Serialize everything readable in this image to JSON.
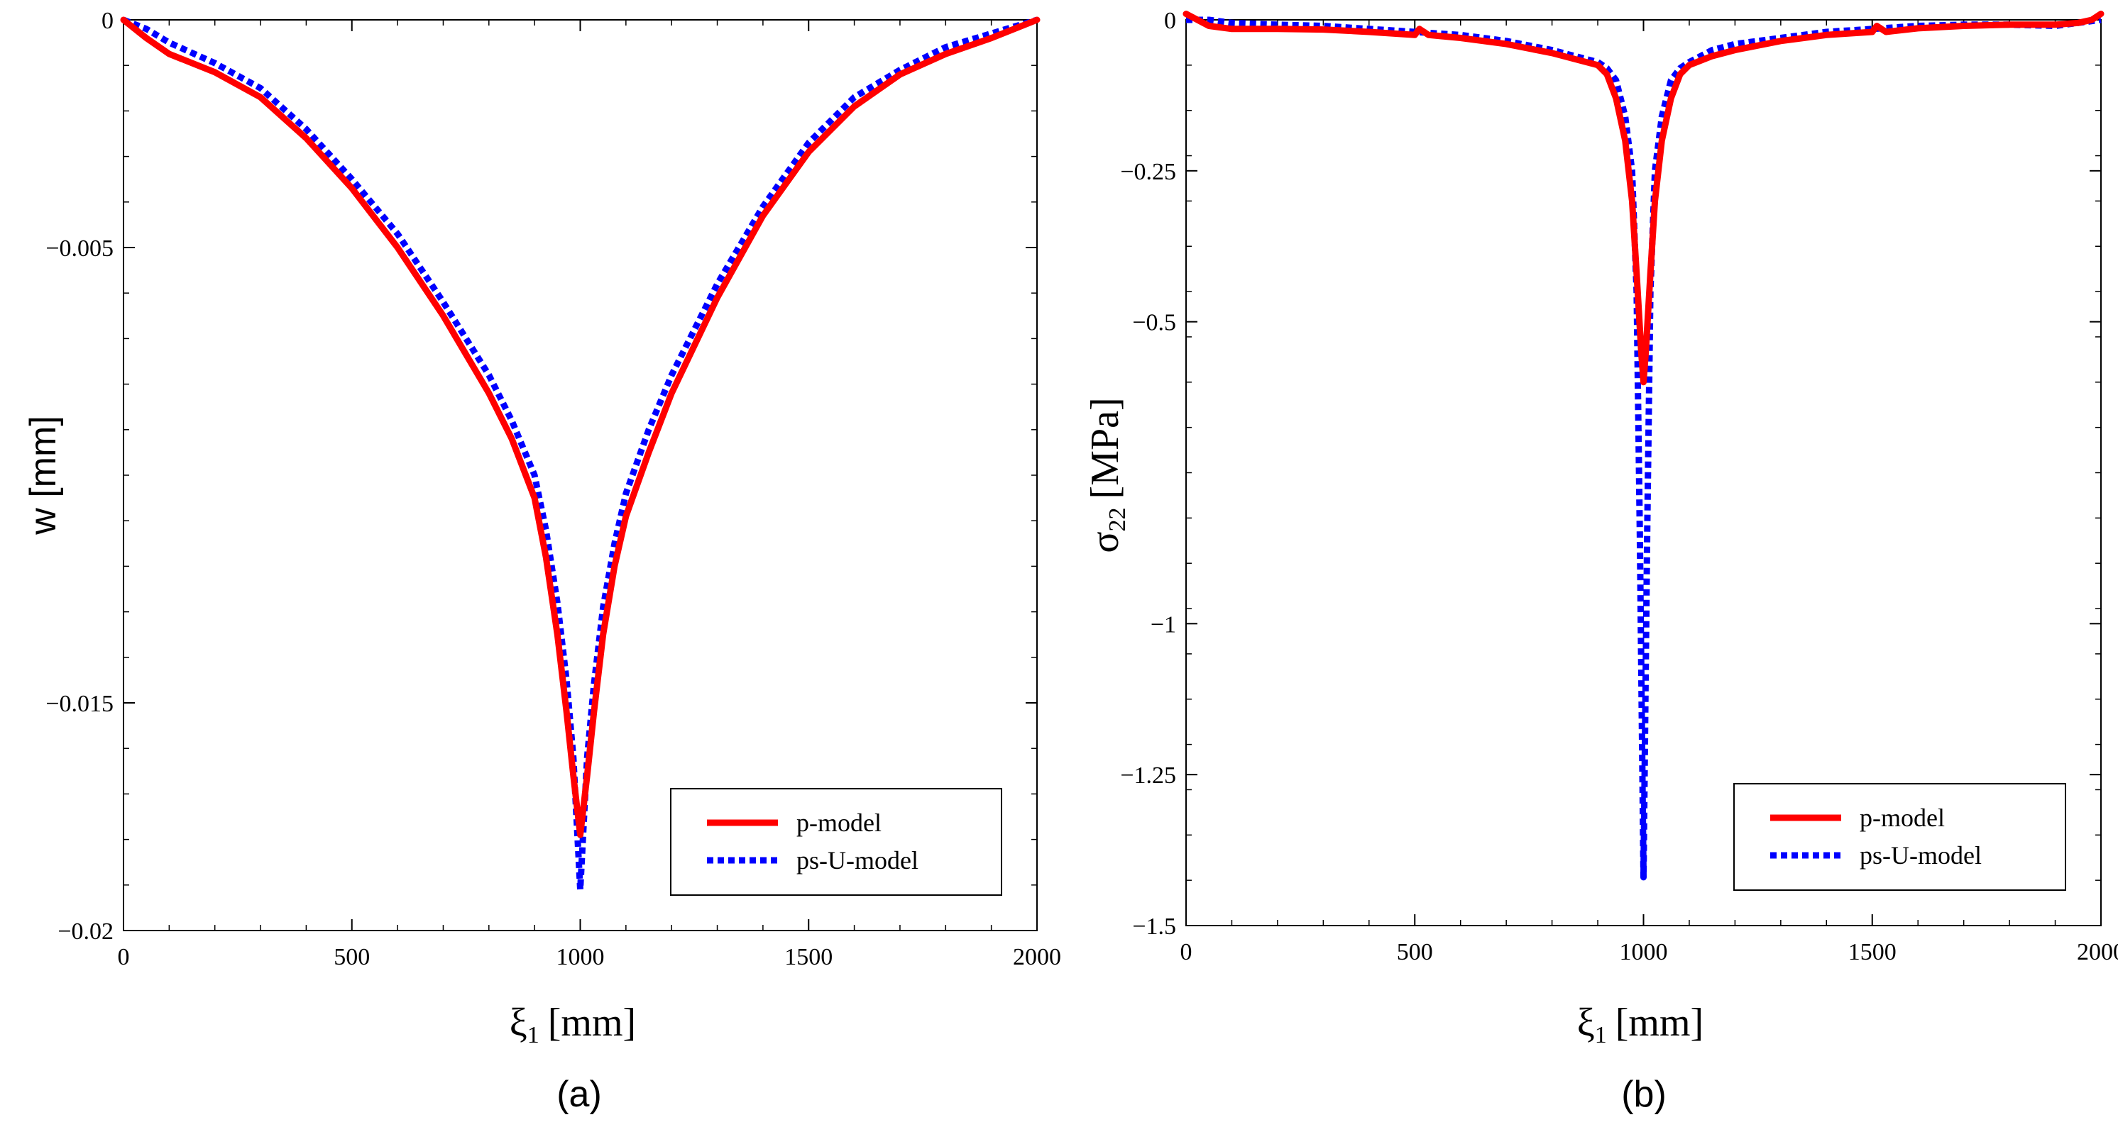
{
  "chart_data": [
    {
      "type": "line",
      "panel_label": "(a)",
      "title": "",
      "xlabel_symbol": "ξ",
      "xlabel_sub": "1",
      "xlabel_unit": "[mm]",
      "ylabel": "w [mm]",
      "xlim": [
        0,
        2000
      ],
      "ylim": [
        -0.02,
        0
      ],
      "xticks": [
        0,
        500,
        1000,
        1500,
        2000
      ],
      "xtick_labels": [
        "0",
        "500",
        "1000",
        "1500",
        "2000"
      ],
      "yticks": [
        0,
        -0.005,
        -0.015,
        -0.02
      ],
      "ytick_labels": [
        "0",
        "−0.005",
        "−0.015",
        "−0.02"
      ],
      "legend_position": "bottom-right",
      "series": [
        {
          "name": "p-model",
          "color": "#ff0000",
          "style": "solid",
          "x": [
            0,
            50,
            100,
            200,
            300,
            400,
            500,
            600,
            700,
            800,
            850,
            900,
            925,
            950,
            970,
            985,
            1000,
            1015,
            1030,
            1050,
            1075,
            1100,
            1150,
            1200,
            1300,
            1400,
            1500,
            1600,
            1700,
            1800,
            1900,
            1950,
            2000
          ],
          "y": [
            0,
            -0.0004,
            -0.00075,
            -0.00115,
            -0.0017,
            -0.0026,
            -0.0037,
            -0.005,
            -0.0065,
            -0.0082,
            -0.0092,
            -0.0105,
            -0.0118,
            -0.0135,
            -0.0152,
            -0.0166,
            -0.0179,
            -0.0166,
            -0.0152,
            -0.0135,
            -0.012,
            -0.0109,
            -0.0095,
            -0.0082,
            -0.0061,
            -0.0043,
            -0.0029,
            -0.0019,
            -0.0012,
            -0.00075,
            -0.0004,
            -0.0002,
            0
          ]
        },
        {
          "name": "ps-U-model",
          "color": "#0000ff",
          "style": "dotted",
          "x": [
            0,
            50,
            100,
            200,
            300,
            400,
            500,
            600,
            700,
            800,
            850,
            900,
            925,
            950,
            970,
            985,
            1000,
            1015,
            1030,
            1050,
            1075,
            1100,
            1150,
            1200,
            1300,
            1400,
            1500,
            1600,
            1700,
            1800,
            1900,
            1950,
            2000
          ],
          "y": [
            0,
            -0.0002,
            -0.0005,
            -0.00095,
            -0.0015,
            -0.0024,
            -0.0035,
            -0.0047,
            -0.0062,
            -0.0078,
            -0.0088,
            -0.01,
            -0.0112,
            -0.0128,
            -0.0145,
            -0.0162,
            -0.0191,
            -0.0162,
            -0.0146,
            -0.0129,
            -0.0115,
            -0.0104,
            -0.009,
            -0.0078,
            -0.0058,
            -0.0041,
            -0.0027,
            -0.0017,
            -0.0011,
            -0.0006,
            -0.0003,
            -0.00015,
            0
          ]
        }
      ]
    },
    {
      "type": "line",
      "panel_label": "(b)",
      "title": "",
      "xlabel_symbol": "ξ",
      "xlabel_sub": "1",
      "xlabel_unit": "[mm]",
      "ylabel_symbol": "σ",
      "ylabel_sub": "22",
      "ylabel_unit": "[MPa]",
      "xlim": [
        0,
        2000
      ],
      "ylim": [
        -1.5,
        0
      ],
      "xticks": [
        0,
        500,
        1000,
        1500,
        2000
      ],
      "xtick_labels": [
        "0",
        "500",
        "1000",
        "1500",
        "2000"
      ],
      "yticks": [
        0,
        -0.25,
        -0.5,
        -1,
        -1.25,
        -1.5
      ],
      "ytick_labels": [
        "0",
        "−0.25",
        "−0.5",
        "−1",
        "−1.25",
        "−1.5"
      ],
      "legend_position": "bottom-right",
      "series": [
        {
          "name": "p-model",
          "color": "#ff0000",
          "style": "solid",
          "x": [
            0,
            25,
            50,
            100,
            200,
            300,
            400,
            500,
            510,
            530,
            600,
            700,
            800,
            850,
            900,
            920,
            940,
            960,
            975,
            985,
            995,
            1000,
            1005,
            1015,
            1025,
            1040,
            1060,
            1080,
            1100,
            1150,
            1200,
            1300,
            1400,
            1500,
            1510,
            1530,
            1600,
            1700,
            1800,
            1900,
            1950,
            1980,
            2000
          ],
          "y": [
            0.01,
            0,
            -0.01,
            -0.015,
            -0.015,
            -0.016,
            -0.02,
            -0.025,
            -0.015,
            -0.025,
            -0.03,
            -0.04,
            -0.055,
            -0.065,
            -0.075,
            -0.09,
            -0.13,
            -0.2,
            -0.3,
            -0.42,
            -0.55,
            -0.6,
            -0.55,
            -0.42,
            -0.3,
            -0.2,
            -0.13,
            -0.09,
            -0.075,
            -0.06,
            -0.05,
            -0.035,
            -0.025,
            -0.02,
            -0.01,
            -0.02,
            -0.014,
            -0.01,
            -0.008,
            -0.008,
            -0.005,
            0,
            0.01
          ]
        },
        {
          "name": "ps-U-model",
          "color": "#0000ff",
          "style": "dotted",
          "x": [
            0,
            50,
            100,
            200,
            300,
            400,
            500,
            600,
            700,
            800,
            850,
            900,
            920,
            940,
            960,
            975,
            985,
            992,
            1000,
            1008,
            1015,
            1025,
            1040,
            1060,
            1080,
            1100,
            1150,
            1200,
            1300,
            1400,
            1500,
            1600,
            1700,
            1800,
            1900,
            2000
          ],
          "y": [
            0,
            0,
            -0.005,
            -0.008,
            -0.01,
            -0.015,
            -0.02,
            -0.025,
            -0.035,
            -0.05,
            -0.06,
            -0.07,
            -0.08,
            -0.1,
            -0.16,
            -0.25,
            -0.45,
            -0.85,
            -1.42,
            -0.85,
            -0.45,
            -0.25,
            -0.16,
            -0.1,
            -0.08,
            -0.07,
            -0.05,
            -0.04,
            -0.03,
            -0.02,
            -0.015,
            -0.01,
            -0.008,
            -0.008,
            -0.01,
            0
          ]
        }
      ]
    }
  ]
}
